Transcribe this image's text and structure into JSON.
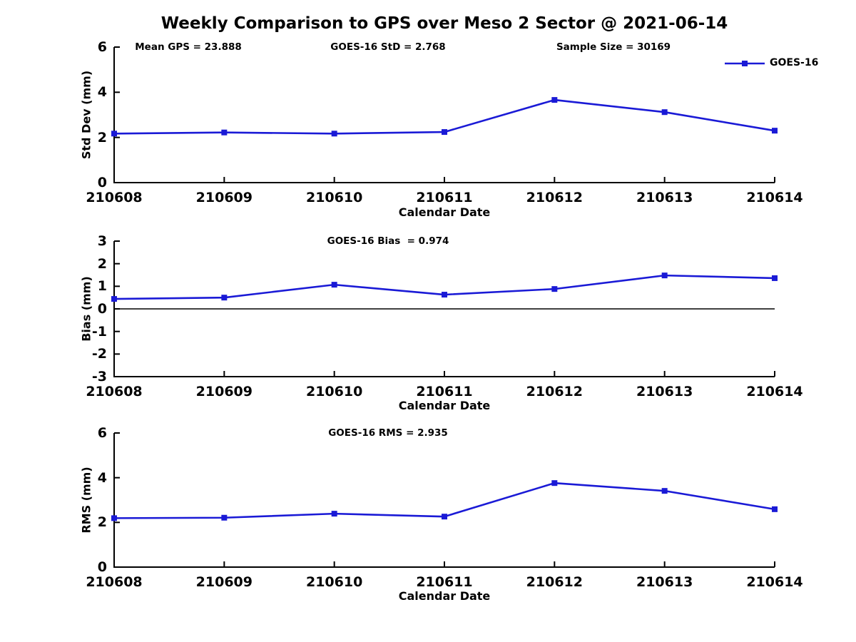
{
  "title": "Weekly Comparison to GPS over Meso 2 Sector @ 2021-06-14",
  "colors": {
    "series": "#1a1ad6",
    "axis": "#000000",
    "text": "#000000",
    "background": "#ffffff"
  },
  "legend": {
    "label": "GOES-16",
    "position": "top-right",
    "boxed": false
  },
  "x_categories": [
    "210608",
    "210609",
    "210610",
    "210611",
    "210612",
    "210613",
    "210614"
  ],
  "chart_data": [
    {
      "type": "line",
      "ylabel": "Std Dev (mm)",
      "xlabel": "Calendar Date",
      "x": [
        "210608",
        "210609",
        "210610",
        "210611",
        "210612",
        "210613",
        "210614"
      ],
      "series": [
        {
          "name": "GOES-16",
          "values": [
            2.17,
            2.22,
            2.17,
            2.24,
            3.66,
            3.12,
            2.3
          ]
        }
      ],
      "ylim": [
        0,
        6
      ],
      "yticks": [
        0,
        2,
        4,
        6
      ],
      "grid": false,
      "marker": "square",
      "annotations": [
        "Mean GPS = 23.888",
        "GOES-16 StD = 2.768",
        "Sample Size = 30169"
      ]
    },
    {
      "type": "line",
      "ylabel": "Bias (mm)",
      "xlabel": "Calendar Date",
      "x": [
        "210608",
        "210609",
        "210610",
        "210611",
        "210612",
        "210613",
        "210614"
      ],
      "series": [
        {
          "name": "GOES-16",
          "values": [
            0.44,
            0.5,
            1.07,
            0.63,
            0.88,
            1.48,
            1.36
          ]
        }
      ],
      "ylim": [
        -3,
        3
      ],
      "yticks": [
        -3,
        -2,
        -1,
        0,
        1,
        2,
        3
      ],
      "grid": false,
      "marker": "square",
      "zero_line": true,
      "annotations": [
        "GOES-16 Bias  = 0.974"
      ]
    },
    {
      "type": "line",
      "ylabel": "RMS (mm)",
      "xlabel": "Calendar Date",
      "x": [
        "210608",
        "210609",
        "210610",
        "210611",
        "210612",
        "210613",
        "210614"
      ],
      "series": [
        {
          "name": "GOES-16",
          "values": [
            2.19,
            2.21,
            2.39,
            2.26,
            3.76,
            3.41,
            2.59
          ]
        }
      ],
      "ylim": [
        0,
        6
      ],
      "yticks": [
        0,
        2,
        4,
        6
      ],
      "grid": false,
      "marker": "square",
      "annotations": [
        "GOES-16 RMS = 2.935"
      ]
    }
  ]
}
